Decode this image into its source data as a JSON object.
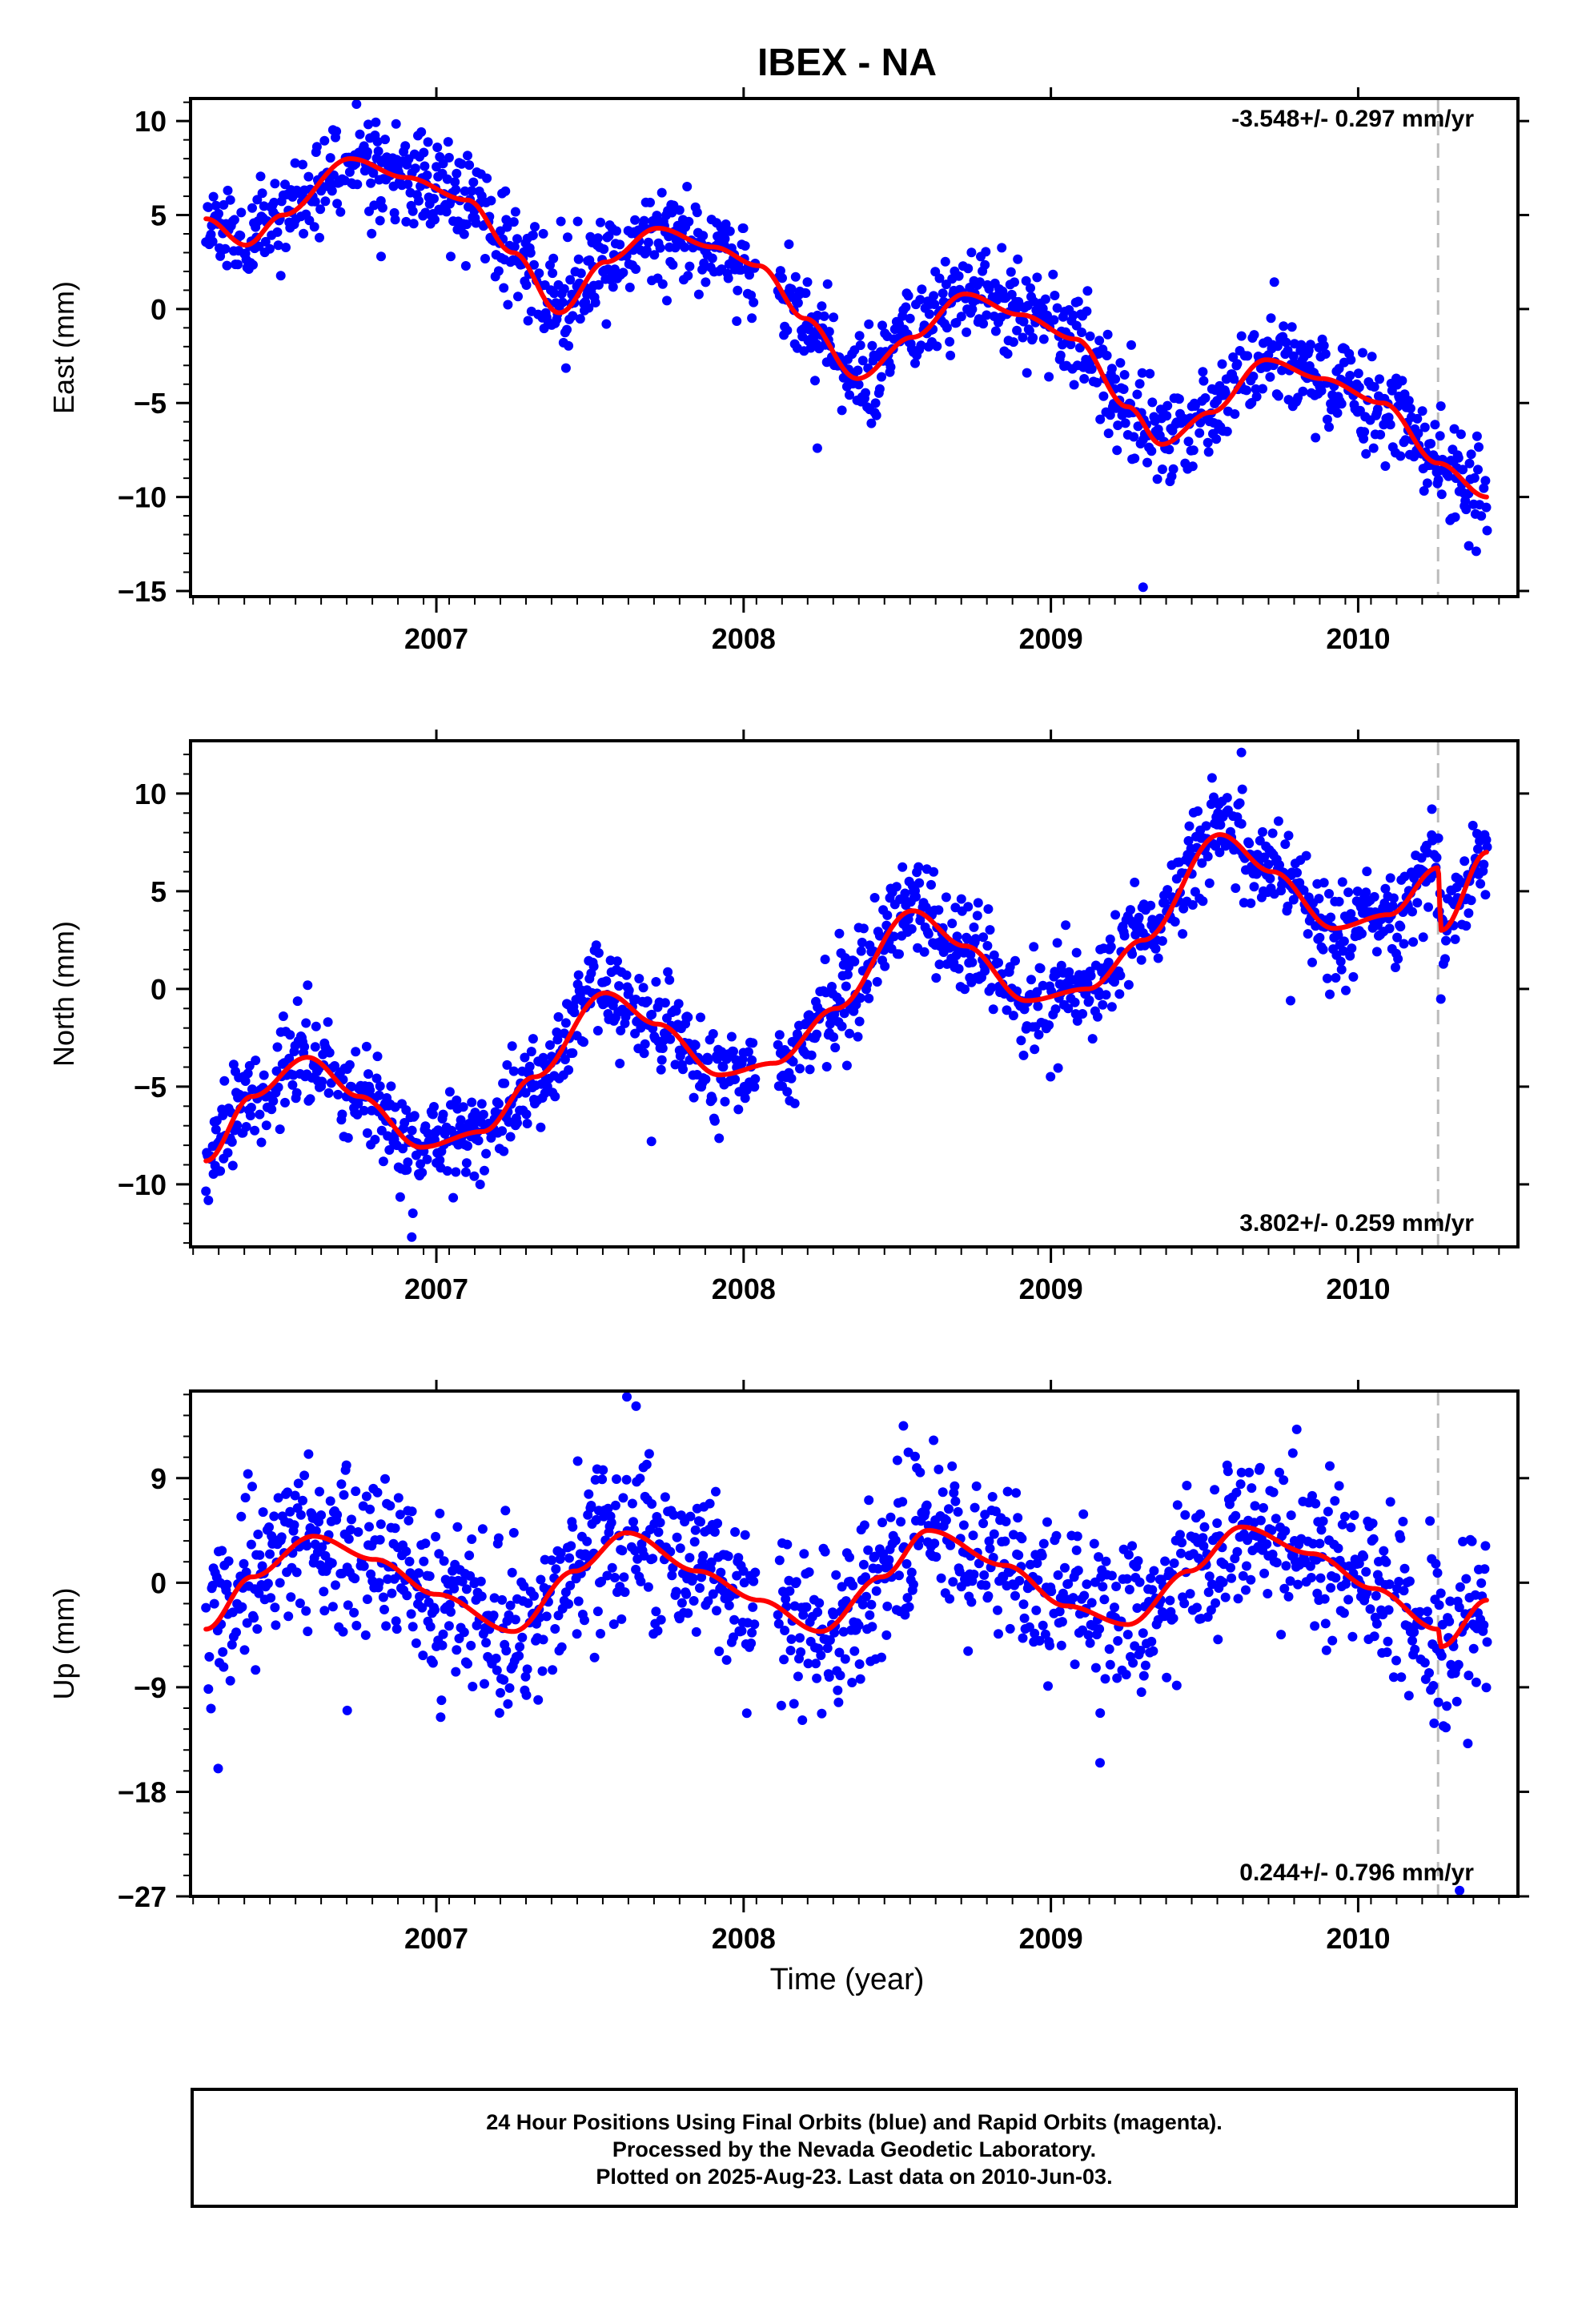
{
  "title": "IBEX - NA",
  "xlabel": "Time (year)",
  "footer": {
    "line1": "24 Hour Positions Using Final Orbits (blue) and Rapid Orbits (magenta).",
    "line2": "Processed by the Nevada Geodetic Laboratory.",
    "line3": "Plotted on 2025-Aug-23. Last data on 2010-Jun-03."
  },
  "colors": {
    "points": "#0000ff",
    "fit": "#ff0000",
    "break_line": "#bbbbbb",
    "frame": "#000000"
  },
  "chart_data": [
    {
      "type": "scatter",
      "component": "east",
      "ylabel": "East (mm)",
      "rate_label": "-3.548+/- 0.297 mm/yr",
      "rate_position": "top-right",
      "xlim": [
        2006.2,
        2010.52
      ],
      "ylim": [
        -15.3,
        11.2
      ],
      "yticks": [
        10,
        5,
        0,
        -5,
        -10,
        -15
      ],
      "xticks": [
        2007,
        2008,
        2009,
        2010
      ],
      "break_x": 2010.26,
      "seed": 11,
      "noise": 1.3,
      "outliers": [
        [
          2009.3,
          -14.8
        ],
        [
          2010.36,
          -12.6
        ],
        [
          2008.24,
          -7.4
        ],
        [
          2006.82,
          2.8
        ]
      ],
      "trend": [
        [
          2006.25,
          4.8
        ],
        [
          2006.38,
          3.4
        ],
        [
          2006.5,
          5.0
        ],
        [
          2006.72,
          8.0
        ],
        [
          2006.9,
          7.0
        ],
        [
          2007.1,
          5.8
        ],
        [
          2007.25,
          3.0
        ],
        [
          2007.4,
          -0.2
        ],
        [
          2007.55,
          2.5
        ],
        [
          2007.72,
          4.3
        ],
        [
          2007.9,
          3.3
        ],
        [
          2008.05,
          2.3
        ],
        [
          2008.2,
          -0.5
        ],
        [
          2008.37,
          -3.7
        ],
        [
          2008.55,
          -1.5
        ],
        [
          2008.72,
          0.8
        ],
        [
          2008.9,
          -0.3
        ],
        [
          2009.08,
          -1.6
        ],
        [
          2009.25,
          -5.2
        ],
        [
          2009.36,
          -7.2
        ],
        [
          2009.52,
          -5.5
        ],
        [
          2009.7,
          -2.7
        ],
        [
          2009.88,
          -3.7
        ],
        [
          2010.08,
          -5.0
        ],
        [
          2010.26,
          -8.2
        ],
        [
          2010.42,
          -10.0
        ]
      ]
    },
    {
      "type": "scatter",
      "component": "north",
      "ylabel": "North (mm)",
      "rate_label": "3.802+/- 0.259 mm/yr",
      "rate_position": "bottom-right",
      "xlim": [
        2006.2,
        2010.52
      ],
      "ylim": [
        -13.2,
        12.7
      ],
      "yticks": [
        10,
        5,
        0,
        -5,
        -10
      ],
      "xticks": [
        2007,
        2008,
        2009,
        2010
      ],
      "break_x": 2010.26,
      "seed": 23,
      "noise": 1.2,
      "outliers": [
        [
          2009.62,
          12.1
        ],
        [
          2006.92,
          -12.7
        ],
        [
          2007.7,
          -7.8
        ],
        [
          2010.24,
          9.2
        ],
        [
          2009.78,
          -0.6
        ]
      ],
      "trend": [
        [
          2006.25,
          -8.8
        ],
        [
          2006.4,
          -5.5
        ],
        [
          2006.58,
          -3.5
        ],
        [
          2006.75,
          -5.5
        ],
        [
          2006.95,
          -8.1
        ],
        [
          2007.15,
          -7.3
        ],
        [
          2007.32,
          -4.5
        ],
        [
          2007.55,
          -0.2
        ],
        [
          2007.72,
          -1.8
        ],
        [
          2007.92,
          -4.4
        ],
        [
          2008.1,
          -3.8
        ],
        [
          2008.3,
          -1.0
        ],
        [
          2008.55,
          4.0
        ],
        [
          2008.72,
          2.2
        ],
        [
          2008.92,
          -0.6
        ],
        [
          2009.12,
          0.0
        ],
        [
          2009.3,
          2.5
        ],
        [
          2009.55,
          7.9
        ],
        [
          2009.72,
          6.0
        ],
        [
          2009.92,
          3.1
        ],
        [
          2010.1,
          3.8
        ],
        [
          2010.26,
          6.2
        ],
        [
          2010.27,
          3.0
        ],
        [
          2010.42,
          7.0
        ]
      ]
    },
    {
      "type": "scatter",
      "component": "up",
      "ylabel": "Up (mm)",
      "rate_label": "0.244+/- 0.796 mm/yr",
      "rate_position": "bottom-right",
      "xlim": [
        2006.2,
        2010.52
      ],
      "ylim": [
        -27,
        16.5
      ],
      "yticks": [
        9,
        0,
        -9,
        -18,
        -27
      ],
      "xticks": [
        2007,
        2008,
        2009,
        2010
      ],
      "break_x": 2010.26,
      "seed": 37,
      "noise": 3.4,
      "outliers": [
        [
          2006.29,
          -16.0
        ],
        [
          2007.62,
          16.0
        ],
        [
          2008.52,
          13.5
        ],
        [
          2009.16,
          -15.5
        ],
        [
          2010.33,
          -26.5
        ],
        [
          2006.71,
          -11.0
        ],
        [
          2007.65,
          15.2
        ],
        [
          2009.8,
          13.2
        ]
      ],
      "trend": [
        [
          2006.25,
          -4.0
        ],
        [
          2006.4,
          0.5
        ],
        [
          2006.6,
          4.0
        ],
        [
          2006.8,
          2.0
        ],
        [
          2007.0,
          -1.0
        ],
        [
          2007.25,
          -4.2
        ],
        [
          2007.45,
          1.0
        ],
        [
          2007.62,
          4.3
        ],
        [
          2007.85,
          1.0
        ],
        [
          2008.05,
          -1.5
        ],
        [
          2008.25,
          -4.2
        ],
        [
          2008.45,
          0.5
        ],
        [
          2008.6,
          4.5
        ],
        [
          2008.85,
          1.5
        ],
        [
          2009.05,
          -2.0
        ],
        [
          2009.25,
          -3.6
        ],
        [
          2009.45,
          1.0
        ],
        [
          2009.62,
          4.8
        ],
        [
          2009.85,
          2.5
        ],
        [
          2010.05,
          -0.5
        ],
        [
          2010.26,
          -4.0
        ],
        [
          2010.27,
          -5.5
        ],
        [
          2010.42,
          -1.5
        ]
      ]
    }
  ]
}
